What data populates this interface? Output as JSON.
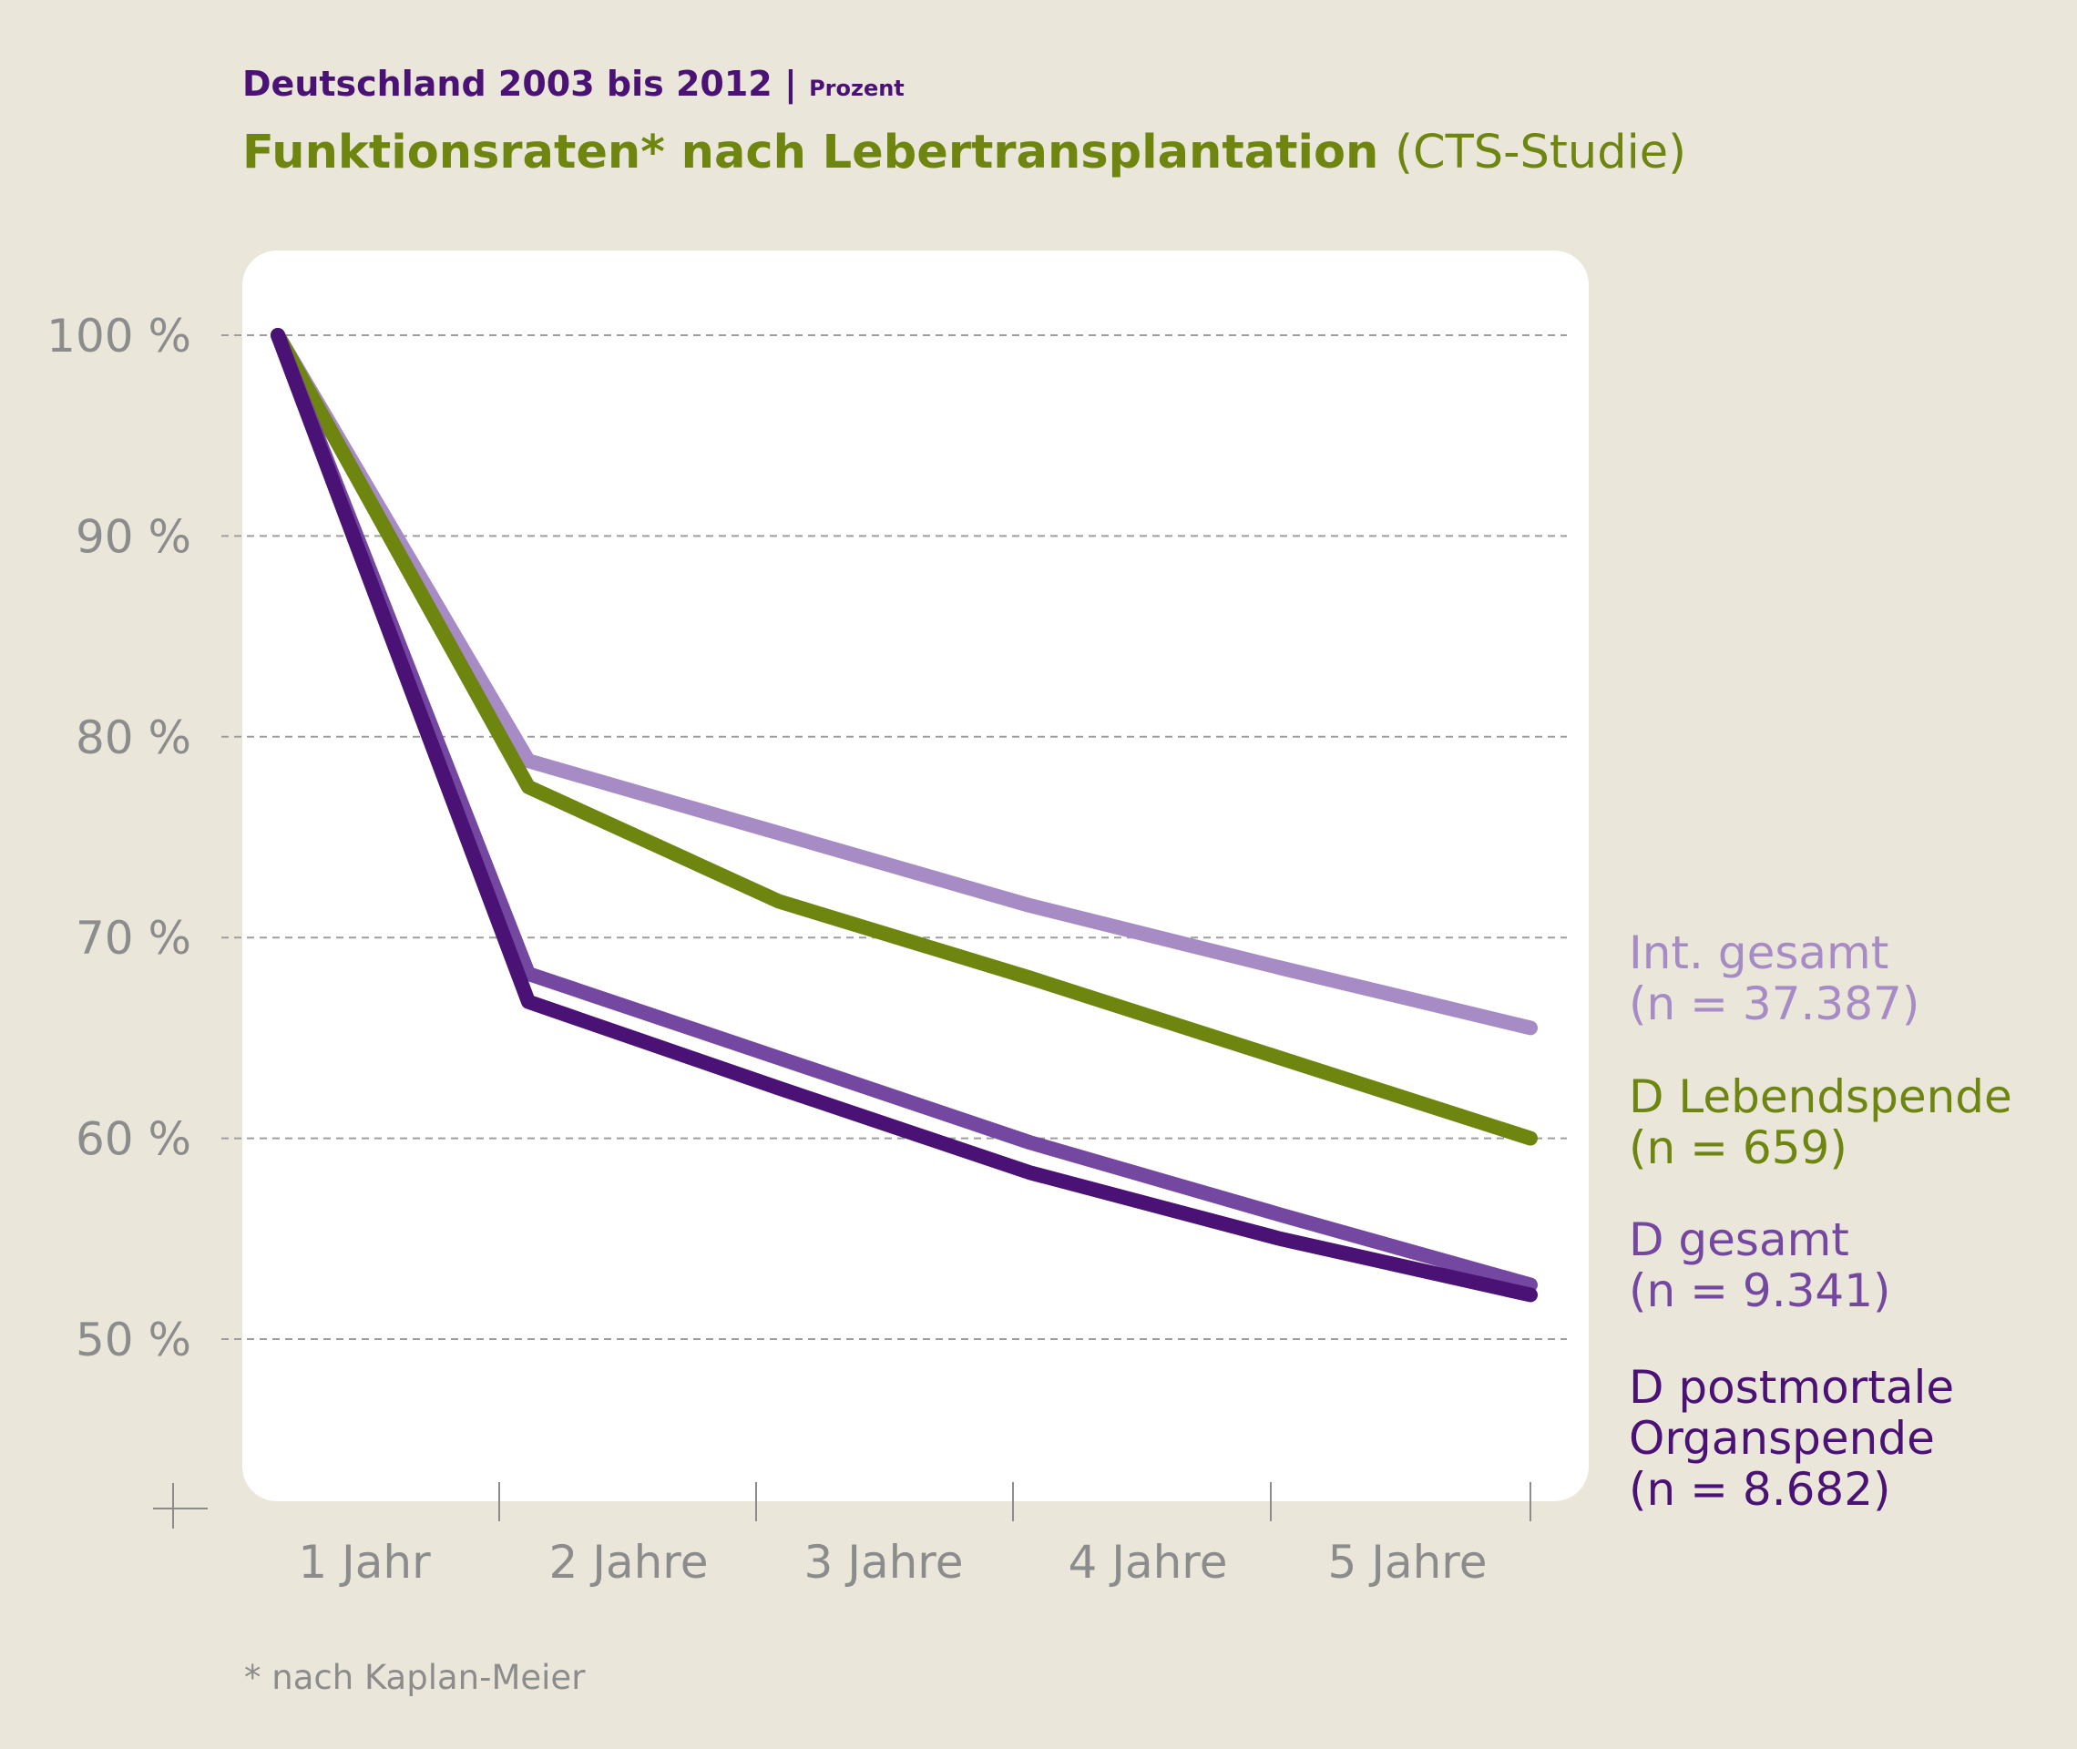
{
  "header": {
    "subtitle": "Deutschland 2003 bis 2012 |",
    "unit": "Prozent",
    "title_bold": "Funktionsraten* nach Lebertransplantation",
    "title_suffix": "(CTS-Studie)"
  },
  "footnote": "* nach Kaplan-Meier",
  "chart_data": {
    "type": "line",
    "x": [
      0,
      1,
      2,
      3,
      4,
      5
    ],
    "categories": [
      "1 Jahr",
      "2 Jahre",
      "3 Jahre",
      "4 Jahre",
      "5 Jahre"
    ],
    "yticks": [
      "100 %",
      "90 %",
      "80 %",
      "70 %",
      "60 %",
      "50 %"
    ],
    "ytick_values": [
      100,
      90,
      80,
      70,
      60,
      50
    ],
    "ylim": [
      42,
      104
    ],
    "grid": true,
    "series": [
      {
        "key": "int",
        "label_lines": [
          "Int. gesamt",
          "(n = 37.387)"
        ],
        "color": "#a68bc4",
        "values": [
          100,
          78.8,
          75.2,
          71.6,
          68.5,
          65.5
        ]
      },
      {
        "key": "lebend",
        "label_lines": [
          "D Lebendspende",
          "(n = 659)"
        ],
        "color": "#6e850f",
        "values": [
          100,
          77.5,
          71.8,
          68.0,
          64.0,
          60.0
        ]
      },
      {
        "key": "gesamt",
        "label_lines": [
          "D gesamt",
          "(n = 9.341)"
        ],
        "color": "#7447a0",
        "values": [
          100,
          68.2,
          64.0,
          59.8,
          56.2,
          52.7
        ]
      },
      {
        "key": "postmortal",
        "label_lines": [
          "D postmortale",
          "Organspende",
          "(n = 8.682)"
        ],
        "color": "#4a1275",
        "values": [
          100,
          66.8,
          62.5,
          58.3,
          55.0,
          52.2
        ]
      }
    ]
  }
}
